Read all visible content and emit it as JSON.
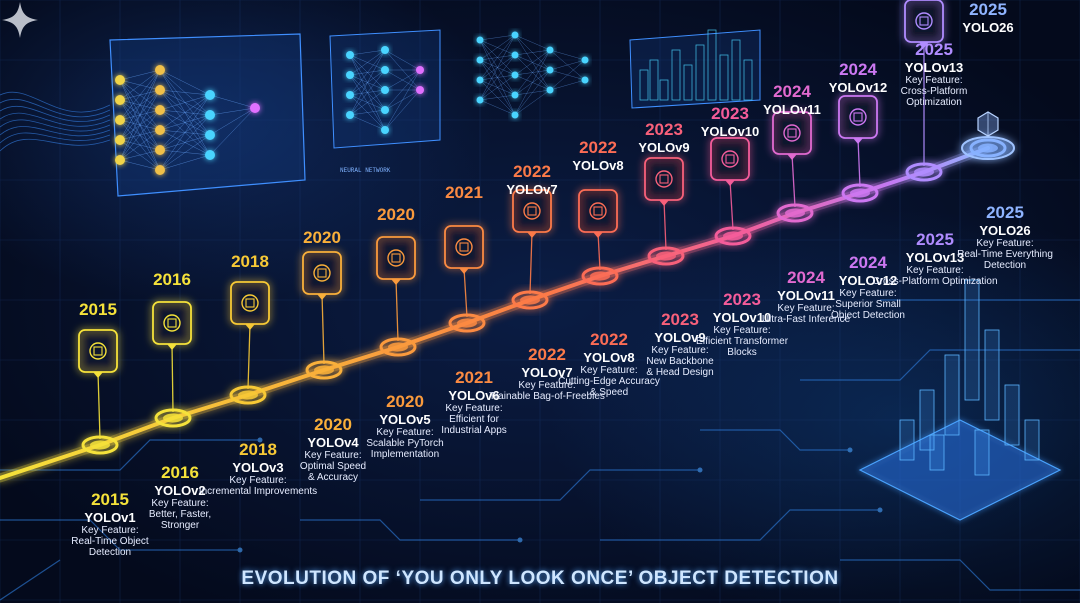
{
  "title": "EVOLUTION OF ‘YOU ONLY LOOK ONCE’ OBJECT DETECTION",
  "key_feature_label": "Key Feature:",
  "decor": {
    "panel_caption": "NEURAL NETWORK"
  },
  "timeline": [
    {
      "year": "2015",
      "model": "YOLOv1",
      "feature": "Real-Time Object Detection",
      "icon": "object-detection-icon",
      "color": "#f5e23a"
    },
    {
      "year": "2016",
      "model": "YOLOv2",
      "feature": "Better, Faster, Stronger",
      "icon": "layered-boxes-icon",
      "color": "#f5e23a"
    },
    {
      "year": "2018",
      "model": "YOLOv3",
      "feature": "Incremental Improvements",
      "icon": "growth-arrow-icon",
      "color": "#f7c936"
    },
    {
      "year": "2020",
      "model": "YOLOv4",
      "feature": "Optimal Speed & Accuracy",
      "icon": "magnifier-gear-icon",
      "color": "#f9b03a"
    },
    {
      "year": "2020",
      "model": "YOLOv5",
      "feature": "Scalable PyTorch Implementation",
      "icon": "pytorch-icon",
      "color": "#fa9a3c"
    },
    {
      "year": "2021",
      "model": "YOLOv6",
      "feature": "Efficient for Industrial Apps",
      "icon": "document-icon",
      "color": "#fb8a42"
    },
    {
      "year": "2022",
      "model": "YOLOv7",
      "feature": "Trainable Bag-of-Freebies",
      "icon": "lightbulb-icon",
      "color": "#fc7a48"
    },
    {
      "year": "2022",
      "model": "YOLOv8",
      "feature": "Cutting-Edge Accuracy & Speed",
      "icon": "target-chip-icon",
      "color": "#fc6c55"
    },
    {
      "year": "2023",
      "model": "YOLOv9",
      "feature": "New Backbone & Head Design",
      "icon": "scan-target-icon",
      "color": "#f8607a"
    },
    {
      "year": "2023",
      "model": "YOLOv10",
      "feature": "Efficient Transformer Blocks",
      "icon": "transformer-icon",
      "color": "#f45c9a"
    },
    {
      "year": "2024",
      "model": "YOLOv11",
      "feature": "Ultra-Fast Inference",
      "icon": "fast-inference-icon",
      "color": "#e26ad0"
    },
    {
      "year": "2024",
      "model": "YOLOv12",
      "feature": "Superior Small Object Detection",
      "icon": "small-object-icon",
      "color": "#cc78f2"
    },
    {
      "year": "2025",
      "model": "YOLOv13",
      "feature": "Cross-Platform Optimization",
      "icon": "cross-platform-icon",
      "color": "#b08cff"
    },
    {
      "year": "2025",
      "model": "YOLO26",
      "feature": "Real-Time Everything Detection",
      "icon": "cube-platform-icon",
      "color": "#8fb4ff"
    }
  ]
}
